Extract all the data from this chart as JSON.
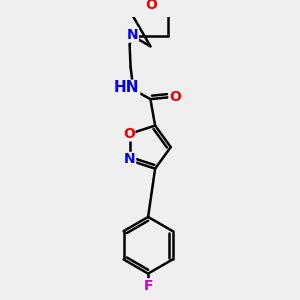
{
  "background_color": "#efefef",
  "bond_color": "#000000",
  "bond_width": 1.8,
  "atom_colors": {
    "N": "#0000ee",
    "O": "#ee0000",
    "F": "#cc00cc",
    "C": "#000000"
  },
  "font_size_atoms": 10
}
